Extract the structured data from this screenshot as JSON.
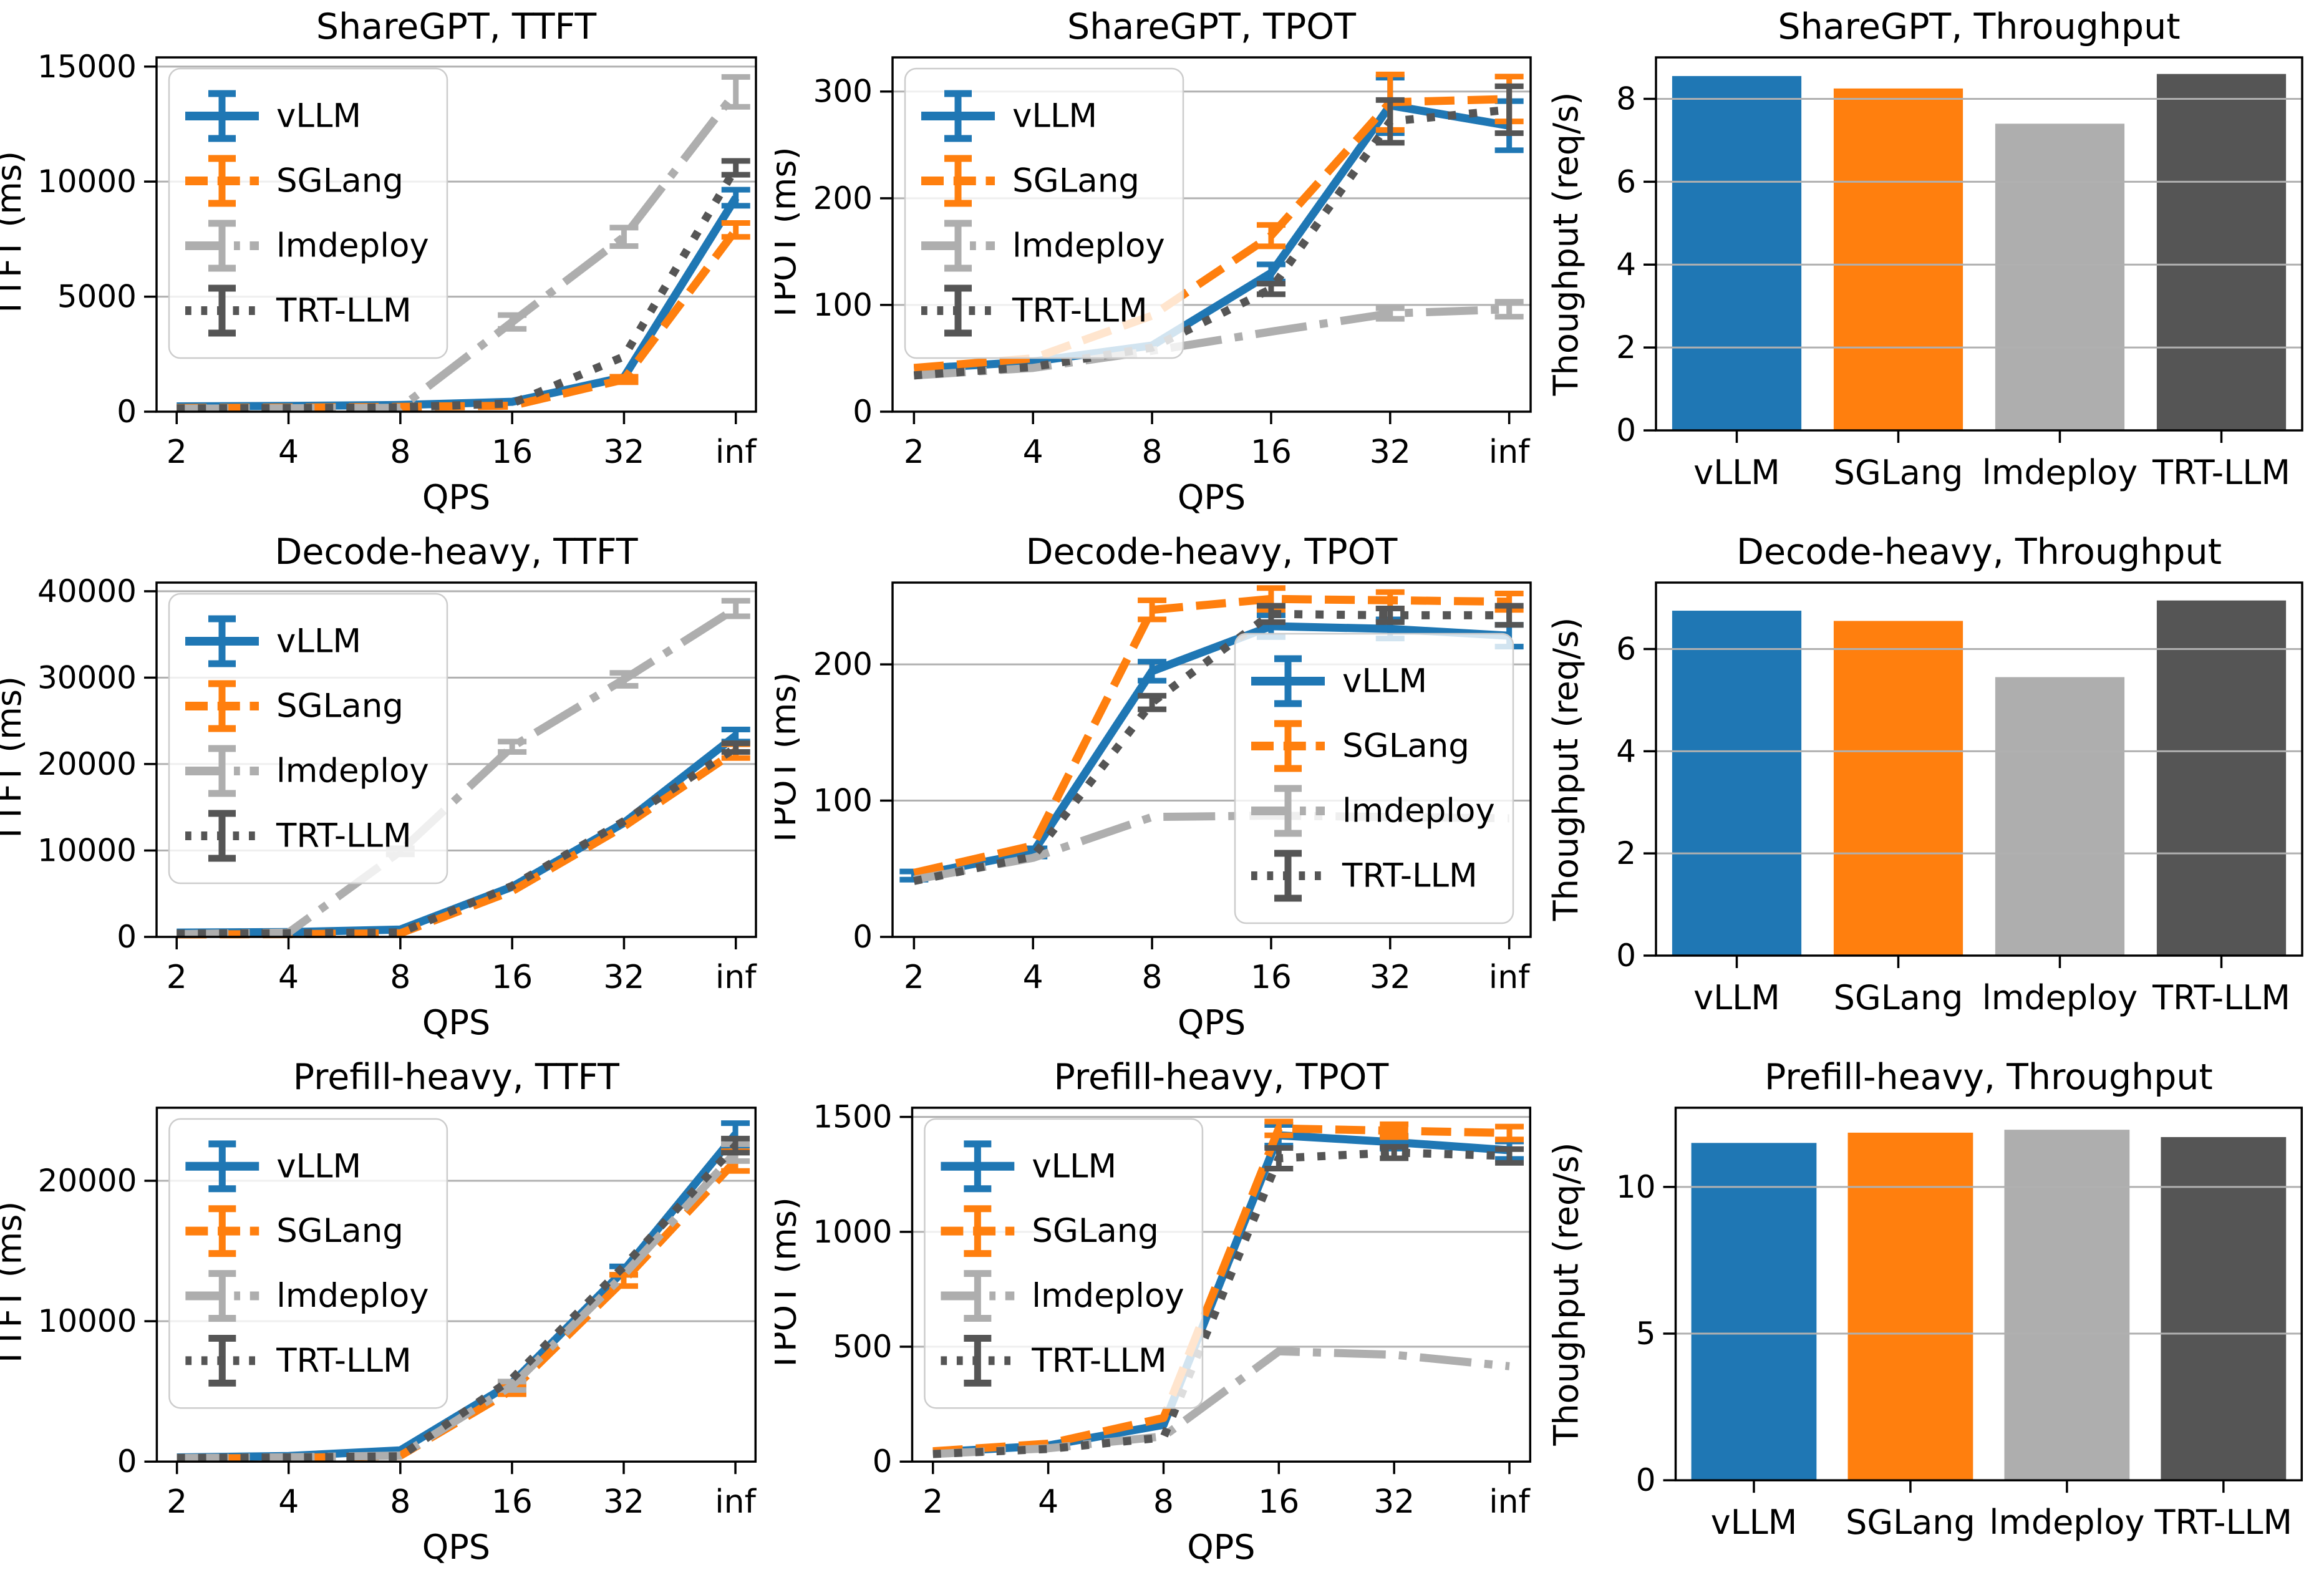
{
  "figure": {
    "background": "#ffffff",
    "grid_color": "#b0b0b0",
    "spine_color": "#000000"
  },
  "series_styles": [
    {
      "name": "vLLM",
      "color": "#1f77b4",
      "dash": "solid"
    },
    {
      "name": "SGLang",
      "color": "#ff7f0e",
      "dash": "dashed"
    },
    {
      "name": "lmdeploy",
      "color": "#aeaeae",
      "dash": "dashdot"
    },
    {
      "name": "TRT-LLM",
      "color": "#555555",
      "dash": "dotted"
    }
  ],
  "chart_data": [
    {
      "slug": "sharegpt-ttft",
      "type": "line",
      "title": "ShareGPT, TTFT",
      "xlabel": "QPS",
      "ylabel": "TTFT (ms)",
      "x_categories": [
        "2",
        "4",
        "8",
        "16",
        "32",
        "inf"
      ],
      "yticks": [
        0,
        5000,
        10000,
        15000
      ],
      "ylim": [
        0,
        15400
      ],
      "legend": "upper-left",
      "series": [
        {
          "name": "vLLM",
          "values": [
            230,
            250,
            290,
            430,
            1500,
            9300
          ],
          "err": [
            0,
            0,
            0,
            0,
            0,
            350
          ]
        },
        {
          "name": "SGLang",
          "values": [
            160,
            180,
            210,
            260,
            1400,
            7900
          ],
          "err": [
            0,
            0,
            0,
            0,
            120,
            300
          ]
        },
        {
          "name": "lmdeploy",
          "values": [
            130,
            150,
            170,
            3900,
            7600,
            13900
          ],
          "err": [
            0,
            0,
            0,
            300,
            400,
            650
          ]
        },
        {
          "name": "TRT-LLM",
          "values": [
            140,
            160,
            190,
            360,
            2400,
            10600
          ],
          "err": [
            0,
            0,
            0,
            0,
            0,
            300
          ]
        }
      ]
    },
    {
      "slug": "sharegpt-tpot",
      "type": "line",
      "title": "ShareGPT, TPOT",
      "xlabel": "QPS",
      "ylabel": "TPOT (ms)",
      "x_categories": [
        "2",
        "4",
        "8",
        "16",
        "32",
        "inf"
      ],
      "yticks": [
        0,
        100,
        200,
        300
      ],
      "ylim": [
        0,
        332
      ],
      "legend": "upper-left",
      "series": [
        {
          "name": "vLLM",
          "values": [
            40,
            47,
            62,
            130,
            287,
            268
          ],
          "err": [
            0,
            0,
            0,
            8,
            26,
            23
          ]
        },
        {
          "name": "SGLang",
          "values": [
            41,
            50,
            90,
            165,
            290,
            293
          ],
          "err": [
            0,
            0,
            0,
            10,
            26,
            21
          ]
        },
        {
          "name": "lmdeploy",
          "values": [
            34,
            41,
            57,
            75,
            92,
            96
          ],
          "err": [
            0,
            0,
            0,
            0,
            5,
            7
          ]
        },
        {
          "name": "TRT-LLM",
          "values": [
            34,
            42,
            60,
            115,
            272,
            283
          ],
          "err": [
            0,
            0,
            0,
            5,
            20,
            22
          ]
        }
      ]
    },
    {
      "slug": "sharegpt-throughput",
      "type": "bar",
      "title": "ShareGPT, Throughput",
      "ylabel": "Thoughput (req/s)",
      "categories": [
        "vLLM",
        "SGLang",
        "lmdeploy",
        "TRT-LLM"
      ],
      "values": [
        8.55,
        8.25,
        7.4,
        8.6
      ],
      "yticks": [
        0,
        2,
        4,
        6,
        8
      ],
      "ylim": [
        0,
        9.0
      ]
    },
    {
      "slug": "decode-heavy-ttft",
      "type": "line",
      "title": "Decode-heavy, TTFT",
      "xlabel": "QPS",
      "ylabel": "TTFT (ms)",
      "x_categories": [
        "2",
        "4",
        "8",
        "16",
        "32",
        "inf"
      ],
      "yticks": [
        0,
        10000,
        20000,
        30000,
        40000
      ],
      "ylim": [
        0,
        41000
      ],
      "legend": "upper-left",
      "series": [
        {
          "name": "vLLM",
          "values": [
            500,
            560,
            850,
            5800,
            13200,
            23300
          ],
          "err": [
            0,
            0,
            0,
            0,
            0,
            700
          ]
        },
        {
          "name": "SGLang",
          "values": [
            280,
            320,
            420,
            5300,
            12800,
            21500
          ],
          "err": [
            0,
            0,
            0,
            0,
            0,
            800
          ]
        },
        {
          "name": "lmdeploy",
          "values": [
            320,
            500,
            9900,
            22000,
            29800,
            38000
          ],
          "err": [
            0,
            0,
            350,
            600,
            750,
            900
          ]
        },
        {
          "name": "TRT-LLM",
          "values": [
            380,
            420,
            520,
            5900,
            13400,
            21900
          ],
          "err": [
            0,
            0,
            0,
            0,
            0,
            500
          ]
        }
      ]
    },
    {
      "slug": "decode-heavy-tpot",
      "type": "line",
      "title": "Decode-heavy, TPOT",
      "xlabel": "QPS",
      "ylabel": "TPOT (ms)",
      "x_categories": [
        "2",
        "4",
        "8",
        "16",
        "32",
        "inf"
      ],
      "yticks": [
        0,
        100,
        200
      ],
      "ylim": [
        0,
        260
      ],
      "legend": "lower-right",
      "series": [
        {
          "name": "vLLM",
          "values": [
            45,
            62,
            195,
            228,
            226,
            221
          ],
          "err": [
            3,
            3,
            7,
            8,
            7,
            8
          ]
        },
        {
          "name": "SGLang",
          "values": [
            47,
            67,
            240,
            248,
            247,
            246
          ],
          "err": [
            0,
            0,
            7,
            8,
            6,
            6
          ]
        },
        {
          "name": "lmdeploy",
          "values": [
            42,
            58,
            88,
            89,
            88,
            87
          ],
          "err": [
            0,
            0,
            0,
            0,
            0,
            0
          ]
        },
        {
          "name": "TRT-LLM",
          "values": [
            41,
            59,
            172,
            237,
            236,
            236
          ],
          "err": [
            0,
            0,
            5,
            6,
            5,
            7
          ]
        }
      ]
    },
    {
      "slug": "decode-heavy-throughput",
      "type": "bar",
      "title": "Decode-heavy, Throughput",
      "ylabel": "Thoughput (req/s)",
      "categories": [
        "vLLM",
        "SGLang",
        "lmdeploy",
        "TRT-LLM"
      ],
      "values": [
        6.75,
        6.55,
        5.45,
        6.95
      ],
      "yticks": [
        0,
        2,
        4,
        6
      ],
      "ylim": [
        0,
        7.3
      ]
    },
    {
      "slug": "prefill-heavy-ttft",
      "type": "line",
      "title": "Prefill-heavy, TTFT",
      "xlabel": "QPS",
      "ylabel": "TTFT (ms)",
      "x_categories": [
        "2",
        "4",
        "8",
        "16",
        "32",
        "inf"
      ],
      "yticks": [
        0,
        10000,
        20000
      ],
      "ylim": [
        0,
        25200
      ],
      "legend": "upper-left",
      "series": [
        {
          "name": "vLLM",
          "values": [
            300,
            400,
            800,
            5600,
            13600,
            23300
          ],
          "err": [
            0,
            0,
            0,
            0,
            300,
            800
          ]
        },
        {
          "name": "SGLang",
          "values": [
            220,
            260,
            420,
            5100,
            12900,
            21400
          ],
          "err": [
            0,
            0,
            0,
            300,
            400,
            700
          ]
        },
        {
          "name": "lmdeploy",
          "values": [
            260,
            310,
            430,
            5400,
            13300,
            22000
          ],
          "err": [
            0,
            0,
            0,
            300,
            0,
            600
          ]
        },
        {
          "name": "TRT-LLM",
          "values": [
            260,
            300,
            380,
            5900,
            13900,
            22500
          ],
          "err": [
            0,
            0,
            0,
            0,
            0,
            500
          ]
        }
      ]
    },
    {
      "slug": "prefill-heavy-tpot",
      "type": "line",
      "title": "Prefill-heavy, TPOT",
      "xlabel": "QPS",
      "ylabel": "TPOT (ms)",
      "x_categories": [
        "2",
        "4",
        "8",
        "16",
        "32",
        "inf"
      ],
      "yticks": [
        0,
        500,
        1000,
        1500
      ],
      "ylim": [
        0,
        1540
      ],
      "legend": "upper-left",
      "series": [
        {
          "name": "vLLM",
          "values": [
            40,
            70,
            160,
            1420,
            1390,
            1355
          ],
          "err": [
            0,
            0,
            0,
            45,
            28,
            38
          ]
        },
        {
          "name": "SGLang",
          "values": [
            45,
            78,
            190,
            1450,
            1440,
            1430
          ],
          "err": [
            0,
            0,
            0,
            30,
            28,
            28
          ]
        },
        {
          "name": "lmdeploy",
          "values": [
            33,
            58,
            110,
            480,
            465,
            415
          ],
          "err": [
            0,
            0,
            0,
            0,
            0,
            0
          ]
        },
        {
          "name": "TRT-LLM",
          "values": [
            33,
            55,
            105,
            1320,
            1345,
            1330
          ],
          "err": [
            0,
            0,
            0,
            45,
            25,
            30
          ]
        }
      ]
    },
    {
      "slug": "prefill-heavy-throughput",
      "type": "bar",
      "title": "Prefill-heavy, Throughput",
      "ylabel": "Thoughput (req/s)",
      "categories": [
        "vLLM",
        "SGLang",
        "lmdeploy",
        "TRT-LLM"
      ],
      "values": [
        11.5,
        11.85,
        11.95,
        11.7
      ],
      "yticks": [
        0,
        5,
        10
      ],
      "ylim": [
        0,
        12.7
      ]
    }
  ]
}
